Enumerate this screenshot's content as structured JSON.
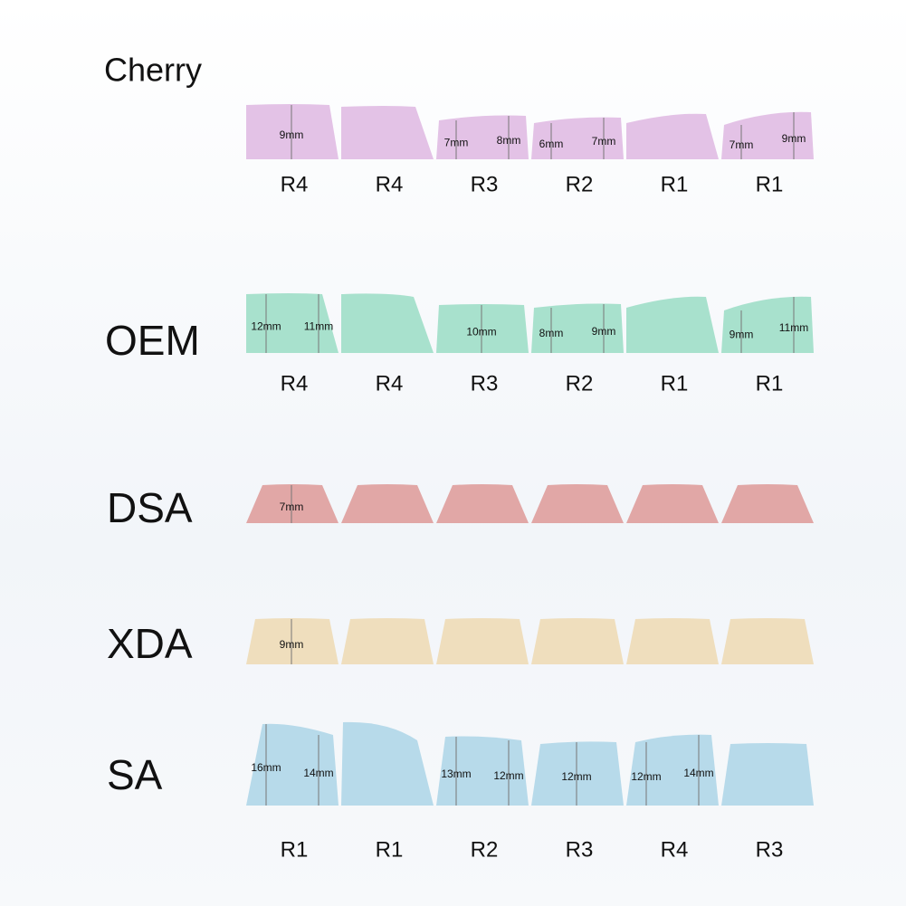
{
  "profiles": [
    {
      "name": "Cherry",
      "keys": [
        [
          "9mm"
        ],
        [],
        [
          "7mm",
          "8mm"
        ],
        [
          "6mm",
          "7mm"
        ],
        [],
        [
          "7mm",
          "9mm"
        ]
      ],
      "rows": [
        "R4",
        "R4",
        "R3",
        "R2",
        "R1",
        "R1"
      ]
    },
    {
      "name": "OEM",
      "keys": [
        [
          "12mm",
          "11mm"
        ],
        [],
        [
          "10mm"
        ],
        [
          "8mm",
          "9mm"
        ],
        [],
        [
          "9mm",
          "11mm"
        ]
      ],
      "rows": [
        "R4",
        "R4",
        "R3",
        "R2",
        "R1",
        "R1"
      ]
    },
    {
      "name": "DSA",
      "keys": [
        [
          "7mm"
        ],
        [],
        [],
        [],
        [],
        []
      ]
    },
    {
      "name": "XDA",
      "keys": [
        [
          "9mm"
        ],
        [],
        [],
        [],
        [],
        []
      ]
    },
    {
      "name": "SA",
      "keys": [
        [
          "16mm",
          "14mm"
        ],
        [],
        [
          "13mm",
          "12mm"
        ],
        [
          "12mm"
        ],
        [
          "12mm",
          "14mm"
        ],
        []
      ],
      "rows": [
        "R1",
        "R1",
        "R2",
        "R3",
        "R4",
        "R3"
      ]
    }
  ]
}
